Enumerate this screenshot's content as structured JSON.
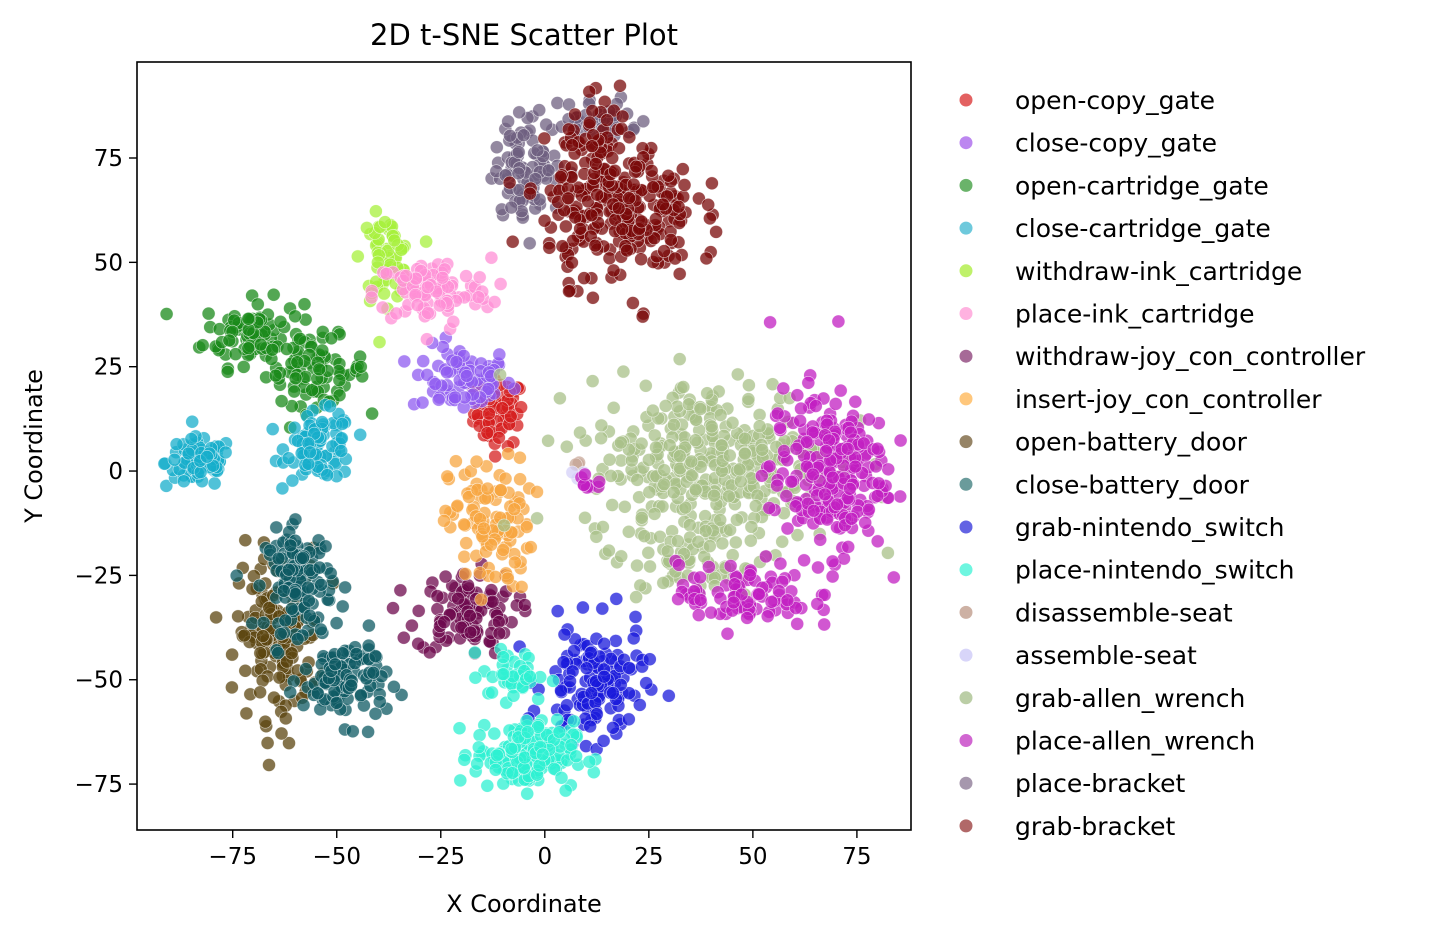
{
  "chart_data": {
    "type": "scatter",
    "title": "2D t-SNE Scatter Plot",
    "xlabel": "X Coordinate",
    "ylabel": "Y Coordinate",
    "xlim": [
      -98,
      88
    ],
    "ylim": [
      -86,
      98
    ],
    "xticks": [
      -75,
      -50,
      -25,
      0,
      25,
      50,
      75
    ],
    "yticks": [
      -75,
      -50,
      -25,
      0,
      25,
      50,
      75
    ],
    "xtick_labels": [
      "−75",
      "−50",
      "−25",
      "0",
      "25",
      "50",
      "75"
    ],
    "ytick_labels": [
      "−75",
      "−50",
      "−25",
      "0",
      "25",
      "50",
      "75"
    ],
    "grid": false,
    "legend_position": "outside-right",
    "series": [
      {
        "name": "open-copy_gate",
        "color": "#e05050",
        "clusters": [
          {
            "cx": -11,
            "cy": 14,
            "sx": 3,
            "sy": 4,
            "n": 70,
            "color": "#d61f1f"
          }
        ]
      },
      {
        "name": "close-copy_gate",
        "color": "#b57aee",
        "clusters": [
          {
            "cx": -20,
            "cy": 22,
            "sx": 6,
            "sy": 4,
            "n": 80,
            "color": "#8f5bf0"
          }
        ]
      },
      {
        "name": "open-cartridge_gate",
        "color": "#5aab5a",
        "clusters": [
          {
            "cx": -70,
            "cy": 33,
            "sx": 6,
            "sy": 4,
            "n": 90,
            "color": "#1a8a1a"
          },
          {
            "cx": -55,
            "cy": 24,
            "sx": 6,
            "sy": 4,
            "n": 80,
            "color": "#1a8a1a"
          }
        ]
      },
      {
        "name": "close-cartridge_gate",
        "color": "#5ec3d8",
        "clusters": [
          {
            "cx": -83,
            "cy": 2,
            "sx": 4,
            "sy": 3,
            "n": 90,
            "color": "#17aecb"
          },
          {
            "cx": -54,
            "cy": 6,
            "sx": 4,
            "sy": 4,
            "n": 90,
            "color": "#17aecb"
          }
        ]
      },
      {
        "name": "withdraw-ink_cartridge",
        "color": "#b8f05a",
        "clusters": [
          {
            "cx": -38,
            "cy": 51,
            "sx": 3,
            "sy": 5,
            "n": 60,
            "color": "#a7f03c"
          }
        ]
      },
      {
        "name": "place-ink_cartridge",
        "color": "#ffaadd",
        "clusters": [
          {
            "cx": -27,
            "cy": 43,
            "sx": 7,
            "sy": 4,
            "n": 100,
            "color": "#ff8fd6"
          }
        ]
      },
      {
        "name": "withdraw-joy_con_controller",
        "color": "#9c5a8c",
        "clusters": [
          {
            "cx": -19,
            "cy": -34,
            "sx": 6,
            "sy": 5,
            "n": 110,
            "color": "#6d0a4e"
          }
        ]
      },
      {
        "name": "insert-joy_con_controller",
        "color": "#ffc16e",
        "clusters": [
          {
            "cx": -13,
            "cy": -13,
            "sx": 5,
            "sy": 8,
            "n": 110,
            "color": "#f7a640"
          }
        ]
      },
      {
        "name": "open-battery_door",
        "color": "#8b7755",
        "clusters": [
          {
            "cx": -64,
            "cy": -39,
            "sx": 5,
            "sy": 10,
            "n": 170,
            "color": "#5c4510"
          }
        ]
      },
      {
        "name": "close-battery_door",
        "color": "#5a9090",
        "clusters": [
          {
            "cx": -59,
            "cy": -26,
            "sx": 4,
            "sy": 6,
            "n": 120,
            "color": "#0d5a63"
          },
          {
            "cx": -48,
            "cy": -50,
            "sx": 5,
            "sy": 5,
            "n": 110,
            "color": "#0d5a63"
          }
        ]
      },
      {
        "name": "grab-nintendo_switch",
        "color": "#5252e0",
        "clusters": [
          {
            "cx": 12,
            "cy": -51,
            "sx": 6,
            "sy": 7,
            "n": 140,
            "color": "#1a1adb"
          }
        ]
      },
      {
        "name": "place-nintendo_switch",
        "color": "#5ef5dd",
        "clusters": [
          {
            "cx": -5,
            "cy": -68,
            "sx": 6,
            "sy": 4,
            "n": 170,
            "color": "#2ef0d2"
          },
          {
            "cx": -7,
            "cy": -49,
            "sx": 4,
            "sy": 3,
            "n": 40,
            "color": "#2ef0d2"
          }
        ]
      },
      {
        "name": "disassemble-seat",
        "color": "#c8a89a",
        "clusters": [
          {
            "cx": 7,
            "cy": 2,
            "sx": 1,
            "sy": 1,
            "n": 3,
            "color": "#c8a89a"
          }
        ]
      },
      {
        "name": "assemble-seat",
        "color": "#d4d0f8",
        "clusters": [
          {
            "cx": 8,
            "cy": 0,
            "sx": 1,
            "sy": 1,
            "n": 3,
            "color": "#d4d0f8"
          }
        ]
      },
      {
        "name": "grab-allen_wrench",
        "color": "#b4c99c",
        "clusters": [
          {
            "cx": 40,
            "cy": 2,
            "sx": 15,
            "sy": 10,
            "n": 360,
            "color": "#a8c088"
          },
          {
            "cx": 38,
            "cy": -22,
            "sx": 8,
            "sy": 5,
            "n": 60,
            "color": "#a8c088"
          }
        ]
      },
      {
        "name": "place-allen_wrench",
        "color": "#cc55cc",
        "clusters": [
          {
            "cx": 68,
            "cy": 0,
            "sx": 7,
            "sy": 10,
            "n": 240,
            "color": "#c21fc2"
          },
          {
            "cx": 48,
            "cy": -30,
            "sx": 8,
            "sy": 4,
            "n": 90,
            "color": "#c21fc2"
          },
          {
            "cx": 10,
            "cy": -3,
            "sx": 2,
            "sy": 1,
            "n": 10,
            "color": "#c21fc2"
          }
        ]
      },
      {
        "name": "place-bracket",
        "color": "#9c8ca4",
        "clusters": [
          {
            "cx": -4,
            "cy": 73,
            "sx": 4,
            "sy": 6,
            "n": 100,
            "color": "#6f6080"
          },
          {
            "cx": 13,
            "cy": 84,
            "sx": 5,
            "sy": 3,
            "n": 40,
            "color": "#6f6080"
          }
        ]
      },
      {
        "name": "grab-bracket",
        "color": "#a85858",
        "clusters": [
          {
            "cx": 18,
            "cy": 62,
            "sx": 9,
            "sy": 8,
            "n": 260,
            "color": "#7a0a0a"
          },
          {
            "cx": 14,
            "cy": 76,
            "sx": 5,
            "sy": 6,
            "n": 60,
            "color": "#7a0a0a"
          }
        ]
      }
    ]
  }
}
